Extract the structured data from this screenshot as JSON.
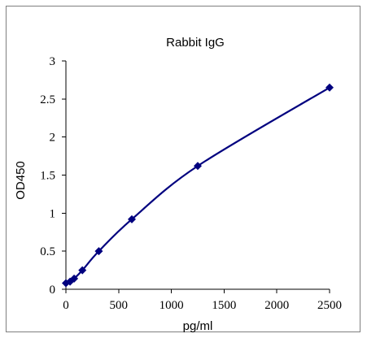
{
  "chart_data": {
    "type": "scatter",
    "title": "Rabbit IgG",
    "xlabel": "pg/ml",
    "ylabel": "OD450",
    "xlim": [
      0,
      2500
    ],
    "ylim": [
      0,
      3
    ],
    "x_ticks": [
      0,
      500,
      1000,
      1500,
      2000,
      2500
    ],
    "y_ticks": [
      0,
      0.5,
      1,
      1.5,
      2,
      2.5,
      3
    ],
    "x_tick_labels": [
      "0",
      "500",
      "1000",
      "1500",
      "2000",
      "2500"
    ],
    "y_tick_labels": [
      "0",
      "0.5",
      "1",
      "1.5",
      "2",
      "2.5",
      "3"
    ],
    "grid": false,
    "legend": "none",
    "trendline": "smooth curve",
    "series": [
      {
        "x": [
          0,
          39,
          78,
          156,
          312,
          625,
          1250,
          2500
        ],
        "y": [
          0.08,
          0.1,
          0.14,
          0.25,
          0.5,
          0.92,
          1.62,
          2.65
        ],
        "color": "#00007f",
        "marker": "diamond"
      }
    ]
  }
}
